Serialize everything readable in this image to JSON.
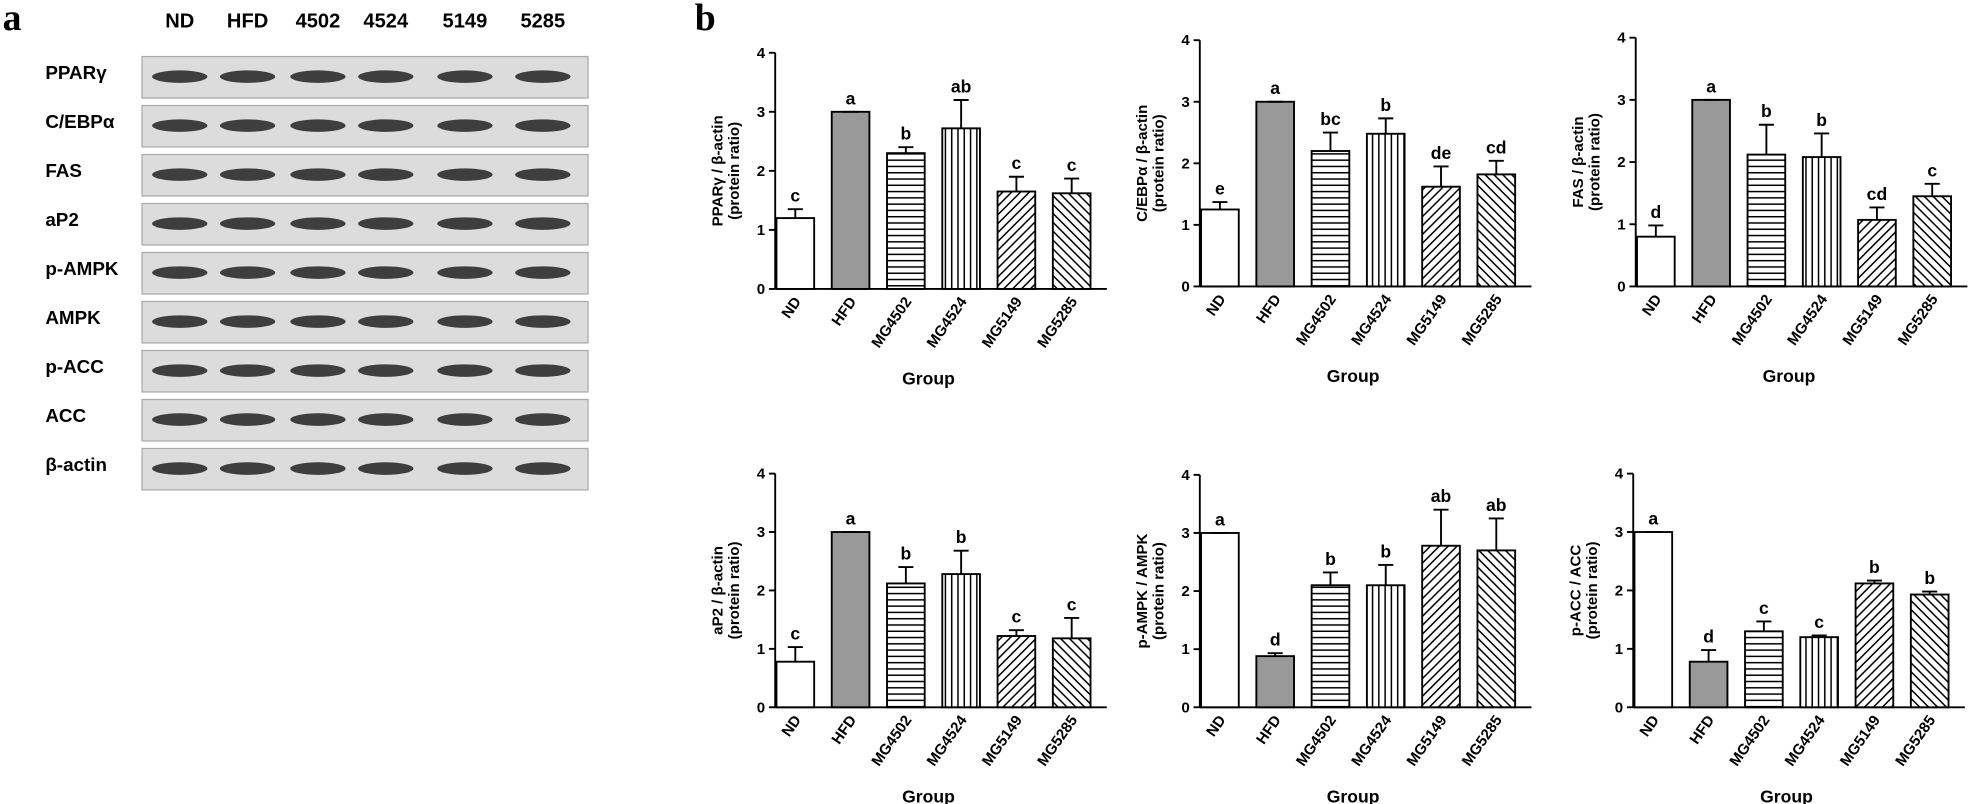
{
  "blot": {
    "panel_label": "a",
    "lanes": [
      "ND",
      "HFD",
      "4502",
      "4524",
      "5149",
      "5285"
    ],
    "proteins": [
      "PPARγ",
      "C/EBPα",
      "FAS",
      "aP2",
      "p-AMPK",
      "AMPK",
      "p-ACC",
      "ACC",
      "β-actin"
    ]
  },
  "panel_label": "b",
  "chart_data": [
    {
      "type": "bar",
      "y_label": [
        "PPARγ / β-actin",
        "(protein ratio)"
      ],
      "x_label": "Group",
      "categories": [
        "ND",
        "HFD",
        "MG4502",
        "MG4524",
        "MG5149",
        "MG5285"
      ],
      "values": [
        1.2,
        3.0,
        2.3,
        2.72,
        1.65,
        1.62
      ],
      "errors": [
        0.15,
        0,
        0.1,
        0.48,
        0.25,
        0.25
      ],
      "annotations": [
        "c",
        "a",
        "b",
        "ab",
        "c",
        "c"
      ],
      "ylim": [
        0,
        4
      ],
      "yticks": [
        0,
        1,
        2,
        3,
        4
      ]
    },
    {
      "type": "bar",
      "y_label": [
        "C/EBPα / β-actin",
        "(protein ratio)"
      ],
      "x_label": "Group",
      "categories": [
        "ND",
        "HFD",
        "MG4502",
        "MG4524",
        "MG5149",
        "MG5285"
      ],
      "values": [
        1.25,
        3.0,
        2.2,
        2.48,
        1.62,
        1.82
      ],
      "errors": [
        0.12,
        0,
        0.3,
        0.25,
        0.33,
        0.22
      ],
      "annotations": [
        "e",
        "a",
        "bc",
        "b",
        "de",
        "cd"
      ],
      "ylim": [
        0,
        4
      ],
      "yticks": [
        0,
        1,
        2,
        3,
        4
      ]
    },
    {
      "type": "bar",
      "y_label": [
        "FAS / β-actin",
        "(protein ratio)"
      ],
      "x_label": "Group",
      "categories": [
        "ND",
        "HFD",
        "MG4502",
        "MG4524",
        "MG5149",
        "MG5285"
      ],
      "values": [
        0.8,
        3.0,
        2.12,
        2.08,
        1.07,
        1.45
      ],
      "errors": [
        0.18,
        0,
        0.48,
        0.38,
        0.2,
        0.2
      ],
      "annotations": [
        "d",
        "a",
        "b",
        "b",
        "cd",
        "c"
      ],
      "ylim": [
        0,
        4
      ],
      "yticks": [
        0,
        1,
        2,
        3,
        4
      ]
    },
    {
      "type": "bar",
      "y_label": [
        "aP2 / β-actin",
        "(protein ratio)"
      ],
      "x_label": "Group",
      "categories": [
        "ND",
        "HFD",
        "MG4502",
        "MG4524",
        "MG5149",
        "MG5285"
      ],
      "values": [
        0.78,
        3.0,
        2.12,
        2.28,
        1.22,
        1.18
      ],
      "errors": [
        0.25,
        0,
        0.28,
        0.4,
        0.1,
        0.35
      ],
      "annotations": [
        "c",
        "a",
        "b",
        "b",
        "c",
        "c"
      ],
      "ylim": [
        0,
        4
      ],
      "yticks": [
        0,
        1,
        2,
        3,
        4
      ]
    },
    {
      "type": "bar",
      "y_label": [
        "p-AMPK / AMPK",
        "(protein ratio)"
      ],
      "x_label": "Group",
      "categories": [
        "ND",
        "HFD",
        "MG4502",
        "MG4524",
        "MG5149",
        "MG5285"
      ],
      "values": [
        3.0,
        0.88,
        2.1,
        2.1,
        2.78,
        2.7
      ],
      "errors": [
        0,
        0.05,
        0.22,
        0.35,
        0.62,
        0.55
      ],
      "annotations": [
        "a",
        "d",
        "b",
        "b",
        "ab",
        "ab"
      ],
      "ylim": [
        0,
        4
      ],
      "yticks": [
        0,
        1,
        2,
        3,
        4
      ]
    },
    {
      "type": "bar",
      "y_label": [
        "p-ACC / ACC",
        "(protein ratio)"
      ],
      "x_label": "Group",
      "categories": [
        "ND",
        "HFD",
        "MG4502",
        "MG4524",
        "MG5149",
        "MG5285"
      ],
      "values": [
        3.0,
        0.78,
        1.3,
        1.2,
        2.12,
        1.93
      ],
      "errors": [
        0,
        0.2,
        0.17,
        0.03,
        0.05,
        0.05
      ],
      "annotations": [
        "a",
        "d",
        "c",
        "c",
        "b",
        "b"
      ],
      "ylim": [
        0,
        4
      ],
      "yticks": [
        0,
        1,
        2,
        3,
        4
      ]
    }
  ]
}
